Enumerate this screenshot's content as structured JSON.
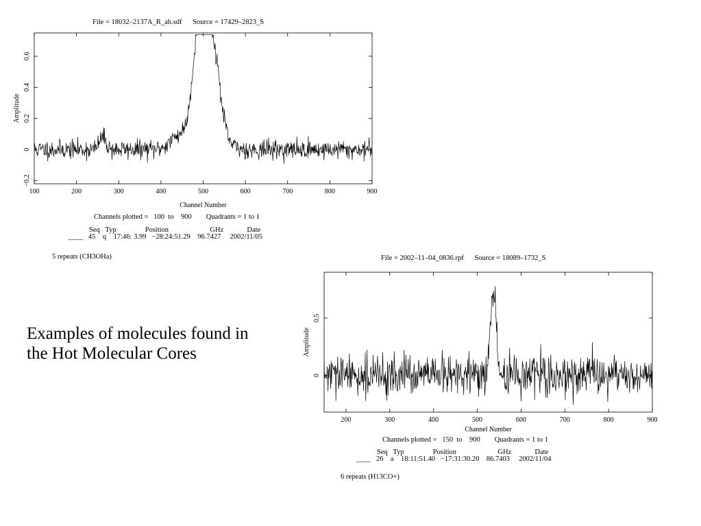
{
  "caption": "Examples of molecules found in the Hot Molecular Cores",
  "chart_data": [
    {
      "type": "line",
      "header": "File = 18032–2137A_R_ab.sdf      Source = 17429–2823_S",
      "xlabel": "Channel Number",
      "ylabel": "Amplitude",
      "xlim": [
        100,
        900
      ],
      "ylim": [
        -0.22,
        0.75
      ],
      "xticks": [
        100,
        200,
        300,
        400,
        500,
        600,
        700,
        800,
        900
      ],
      "yticks": [
        -0.2,
        0,
        0.2,
        0.4,
        0.6
      ],
      "ytick_labels": [
        "−0.2",
        "0",
        "0.2",
        "0.4",
        "0.6"
      ],
      "x_range": [
        100,
        900
      ],
      "noise_sd": 0.03,
      "features": [
        {
          "center": 262,
          "height": 0.08,
          "width": 8
        },
        {
          "center": 440,
          "height": 0.07,
          "width": 20
        },
        {
          "center": 490,
          "height": 0.58,
          "width": 14
        },
        {
          "center": 522,
          "height": 0.5,
          "width": 16
        },
        {
          "center": 505,
          "height": 0.25,
          "width": 30
        }
      ],
      "footer": {
        "channels": "Channels plotted =   100  to    900        Quadrants = 1 to 1",
        "col_headers": "Seq   Typ                Position                       GHz             Date",
        "row": "____   45    q    17:46: 3.99   −28:24:51.29    96.7427     2002/11/05",
        "repeats": "5 repeats (CH3OHa)"
      }
    },
    {
      "type": "line",
      "header": "File = 2002–11–04_0836.rpf      Source = 18089–1732_S",
      "xlabel": "Channel Number",
      "ylabel": "Amplitude",
      "xlim": [
        150,
        900
      ],
      "ylim": [
        -0.32,
        0.9
      ],
      "xticks": [
        200,
        300,
        400,
        500,
        600,
        700,
        800,
        900
      ],
      "yticks": [
        0,
        0.5
      ],
      "ytick_labels": [
        "0",
        "0.5"
      ],
      "x_range": [
        150,
        900
      ],
      "noise_sd": 0.085,
      "features": [
        {
          "center": 535,
          "height": 0.55,
          "width": 5
        },
        {
          "center": 542,
          "height": 0.35,
          "width": 4
        },
        {
          "center": 528,
          "height": 0.15,
          "width": 4
        }
      ],
      "footer": {
        "channels": "Channels plotted =   150  to    900        Quadrants = 1 to 1",
        "col_headers": "Seq   Typ                Position                       GHz             Date",
        "row": "____   26    a    18:11:51.40   −17:31:30.20    86.7403     2002/11/04",
        "repeats": "6 repeats (H13CO+)"
      }
    }
  ]
}
